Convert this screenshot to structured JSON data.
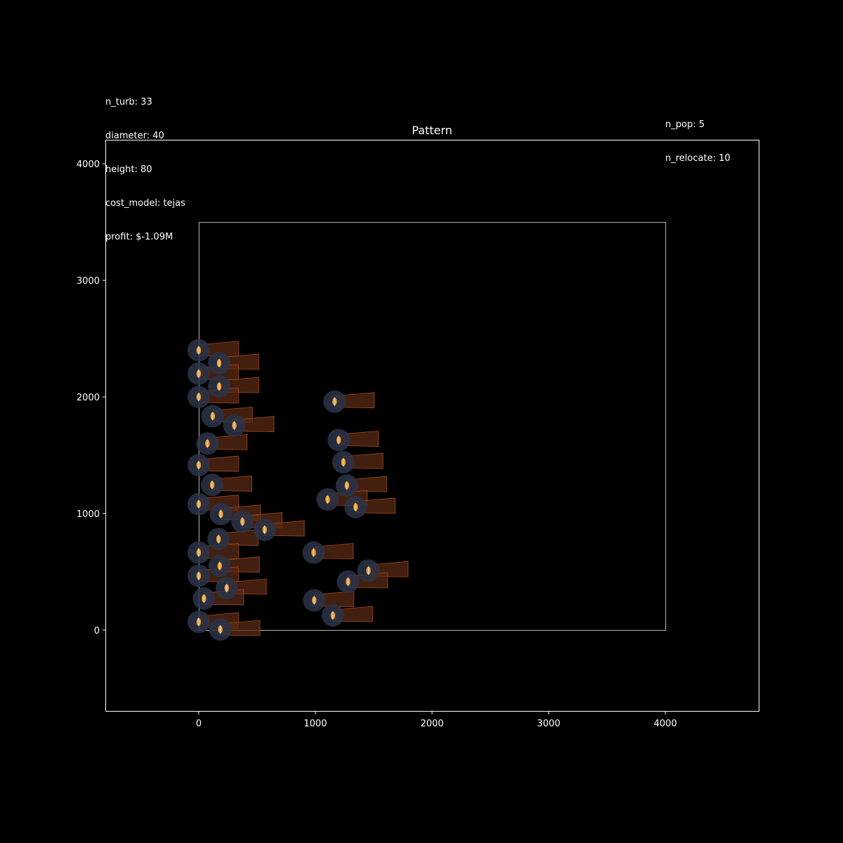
{
  "info_left": {
    "lines": [
      "n_turb: 33",
      "diameter: 40",
      "height: 80",
      "cost_model: tejas",
      "profit: $-1.09M"
    ]
  },
  "info_right": {
    "lines": [
      "n_pop: 5",
      "n_relocate: 10"
    ]
  },
  "chart_data": {
    "type": "scatter",
    "title": "Pattern",
    "xlabel": "",
    "ylabel": "",
    "xlim": [
      -800,
      4800
    ],
    "ylim": [
      -700,
      4200
    ],
    "xticks": [
      0,
      1000,
      2000,
      3000,
      4000
    ],
    "yticks": [
      0,
      1000,
      2000,
      3000,
      4000
    ],
    "grid": false,
    "site_boundary": {
      "x": [
        0,
        4000
      ],
      "y": [
        0,
        3500
      ]
    },
    "wake_length": 340,
    "colors": {
      "background": "#000000",
      "axes": "#ffffff",
      "boundary": "#bbbbbb",
      "turbine_disk": "#2b3448",
      "turbine_marker": "#f0a030",
      "wake_fill": "#5a2a14",
      "wake_edge": "#a0481c"
    },
    "turbines": [
      {
        "x": 0,
        "y": 2400
      },
      {
        "x": 175,
        "y": 2290
      },
      {
        "x": 0,
        "y": 2200
      },
      {
        "x": 175,
        "y": 2090
      },
      {
        "x": 0,
        "y": 2000
      },
      {
        "x": 120,
        "y": 1835
      },
      {
        "x": 305,
        "y": 1755
      },
      {
        "x": 75,
        "y": 1600
      },
      {
        "x": 0,
        "y": 1415
      },
      {
        "x": 115,
        "y": 1245
      },
      {
        "x": 0,
        "y": 1080
      },
      {
        "x": 190,
        "y": 995
      },
      {
        "x": 375,
        "y": 930
      },
      {
        "x": 565,
        "y": 860
      },
      {
        "x": 170,
        "y": 780
      },
      {
        "x": 0,
        "y": 665
      },
      {
        "x": 180,
        "y": 550
      },
      {
        "x": 0,
        "y": 465
      },
      {
        "x": 240,
        "y": 360
      },
      {
        "x": 45,
        "y": 270
      },
      {
        "x": 0,
        "y": 70
      },
      {
        "x": 185,
        "y": 5
      },
      {
        "x": 1165,
        "y": 1960
      },
      {
        "x": 1200,
        "y": 1630
      },
      {
        "x": 1240,
        "y": 1440
      },
      {
        "x": 1270,
        "y": 1240
      },
      {
        "x": 1105,
        "y": 1120
      },
      {
        "x": 1345,
        "y": 1055
      },
      {
        "x": 985,
        "y": 665
      },
      {
        "x": 1455,
        "y": 510
      },
      {
        "x": 1280,
        "y": 415
      },
      {
        "x": 990,
        "y": 255
      },
      {
        "x": 1150,
        "y": 125
      }
    ]
  }
}
